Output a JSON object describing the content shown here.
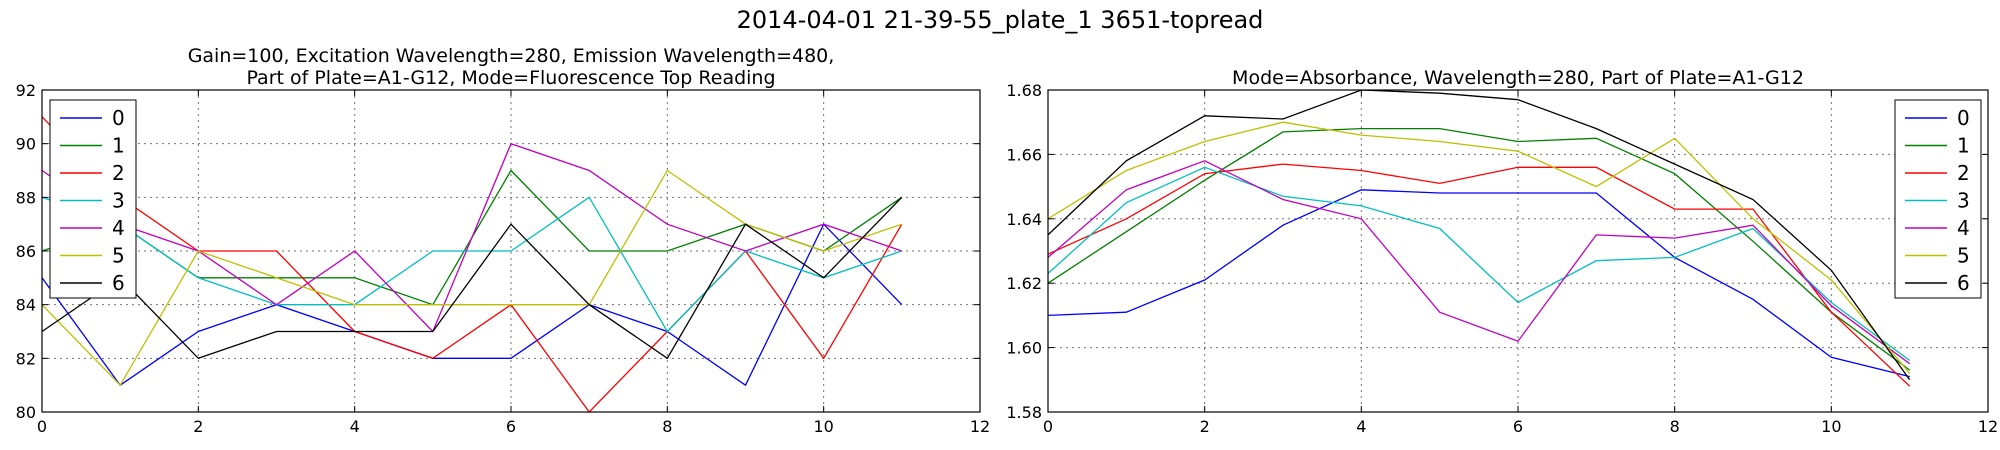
{
  "figure_title": "2014-04-01 21-39-55_plate_1 3651-topread",
  "chart_data": [
    {
      "type": "line",
      "title": "Gain=100, Excitation Wavelength=280, Emission Wavelength=480,\nPart of Plate=A1-G12, Mode=Fluorescence Top Reading",
      "xlabel": "",
      "ylabel": "",
      "xlim": [
        0,
        12
      ],
      "ylim": [
        80,
        92
      ],
      "xticks": [
        0,
        2,
        4,
        6,
        8,
        10,
        12
      ],
      "yticks": [
        80,
        82,
        84,
        86,
        88,
        90,
        92
      ],
      "grid": true,
      "legend_position": "upper-left",
      "x": [
        0,
        1,
        2,
        3,
        4,
        5,
        6,
        7,
        8,
        9,
        10,
        11
      ],
      "series": [
        {
          "name": "0",
          "color": "#0000ff",
          "values": [
            85,
            81,
            83,
            84,
            83,
            82,
            82,
            84,
            83,
            81,
            87,
            84
          ]
        },
        {
          "name": "1",
          "color": "#008000",
          "values": [
            86,
            87,
            85,
            85,
            85,
            84,
            89,
            86,
            86,
            87,
            86,
            88
          ]
        },
        {
          "name": "2",
          "color": "#ff0000",
          "values": [
            91,
            88,
            86,
            86,
            83,
            82,
            84,
            80,
            83,
            86,
            82,
            87
          ]
        },
        {
          "name": "3",
          "color": "#00bfbf",
          "values": [
            88,
            87,
            85,
            84,
            84,
            86,
            86,
            88,
            83,
            86,
            85,
            86
          ]
        },
        {
          "name": "4",
          "color": "#bf00bf",
          "values": [
            89,
            87,
            86,
            84,
            86,
            83,
            90,
            89,
            87,
            86,
            87,
            86
          ]
        },
        {
          "name": "5",
          "color": "#bfbf00",
          "values": [
            84,
            81,
            86,
            85,
            84,
            84,
            84,
            84,
            89,
            87,
            86,
            87
          ]
        },
        {
          "name": "6",
          "color": "#000000",
          "values": [
            83,
            85,
            82,
            83,
            83,
            83,
            87,
            84,
            82,
            87,
            85,
            88
          ]
        }
      ]
    },
    {
      "type": "line",
      "title": "Mode=Absorbance, Wavelength=280, Part of Plate=A1-G12",
      "xlabel": "",
      "ylabel": "",
      "xlim": [
        0,
        12
      ],
      "ylim": [
        1.58,
        1.68
      ],
      "xticks": [
        0,
        2,
        4,
        6,
        8,
        10,
        12
      ],
      "yticks": [
        1.58,
        1.6,
        1.62,
        1.64,
        1.66,
        1.68
      ],
      "grid": true,
      "legend_position": "upper-right",
      "x": [
        0,
        1,
        2,
        3,
        4,
        5,
        6,
        7,
        8,
        9,
        10,
        11
      ],
      "series": [
        {
          "name": "0",
          "color": "#0000ff",
          "values": [
            1.61,
            1.611,
            1.621,
            1.638,
            1.649,
            1.648,
            1.648,
            1.648,
            1.628,
            1.615,
            1.597,
            1.591
          ]
        },
        {
          "name": "1",
          "color": "#008000",
          "values": [
            1.62,
            1.636,
            1.652,
            1.667,
            1.668,
            1.668,
            1.664,
            1.665,
            1.654,
            1.633,
            1.611,
            1.593
          ]
        },
        {
          "name": "2",
          "color": "#ff0000",
          "values": [
            1.629,
            1.64,
            1.654,
            1.657,
            1.655,
            1.651,
            1.656,
            1.656,
            1.643,
            1.643,
            1.611,
            1.588
          ]
        },
        {
          "name": "3",
          "color": "#00bfbf",
          "values": [
            1.623,
            1.645,
            1.656,
            1.647,
            1.644,
            1.637,
            1.614,
            1.627,
            1.628,
            1.637,
            1.614,
            1.596
          ]
        },
        {
          "name": "4",
          "color": "#bf00bf",
          "values": [
            1.628,
            1.649,
            1.658,
            1.646,
            1.64,
            1.611,
            1.602,
            1.635,
            1.634,
            1.638,
            1.613,
            1.595
          ]
        },
        {
          "name": "5",
          "color": "#bfbf00",
          "values": [
            1.64,
            1.655,
            1.664,
            1.67,
            1.666,
            1.664,
            1.661,
            1.65,
            1.665,
            1.64,
            1.621,
            1.592
          ]
        },
        {
          "name": "6",
          "color": "#000000",
          "values": [
            1.635,
            1.658,
            1.672,
            1.671,
            1.68,
            1.679,
            1.677,
            1.668,
            1.657,
            1.646,
            1.624,
            1.59
          ]
        }
      ]
    }
  ]
}
